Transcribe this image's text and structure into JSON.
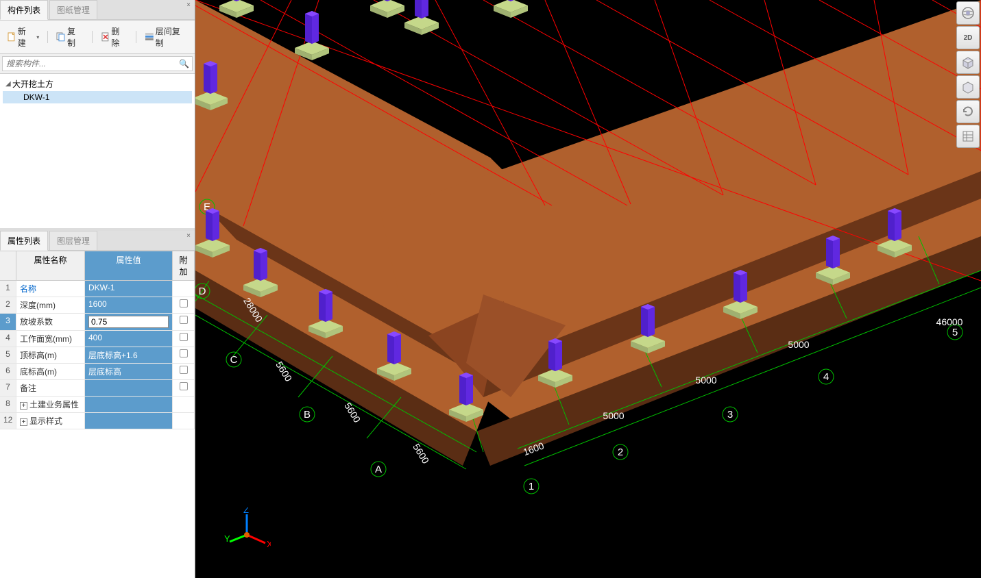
{
  "panel1": {
    "tabs": [
      "构件列表",
      "图纸管理"
    ],
    "toolbar": {
      "new": "新建",
      "copy": "复制",
      "delete": "删除",
      "layerCopy": "层间复制"
    },
    "searchPlaceholder": "搜索构件...",
    "tree": {
      "root": "大开挖土方",
      "child": "DKW-1"
    }
  },
  "panel2": {
    "tabs": [
      "属性列表",
      "图层管理"
    ],
    "headers": {
      "name": "属性名称",
      "value": "属性值",
      "extra": "附加"
    },
    "rows": [
      {
        "num": "1",
        "name": "名称",
        "value": "DKW-1",
        "link": true,
        "checkbox": false
      },
      {
        "num": "2",
        "name": "深度(mm)",
        "value": "1600",
        "checkbox": true
      },
      {
        "num": "3",
        "name": "放坡系数",
        "value": "0.75",
        "selected": true,
        "editing": true,
        "checkbox": true
      },
      {
        "num": "4",
        "name": "工作面宽(mm)",
        "value": "400",
        "checkbox": true
      },
      {
        "num": "5",
        "name": "顶标高(m)",
        "value": "层底标高+1.6",
        "checkbox": true
      },
      {
        "num": "6",
        "name": "底标高(m)",
        "value": "层底标高",
        "checkbox": true
      },
      {
        "num": "7",
        "name": "备注",
        "value": "",
        "checkbox": true
      },
      {
        "num": "8",
        "name": "土建业务属性",
        "value": "",
        "expandable": true,
        "checkbox": false
      },
      {
        "num": "12",
        "name": "显示样式",
        "value": "",
        "expandable": true,
        "checkbox": false
      }
    ]
  },
  "viewport": {
    "gridColor": "#ff0000",
    "axisColor": "#00ff00",
    "earthworkColor": "#a0522d",
    "earthworkColorDark": "#6b3518",
    "columnColor": "#7030ff",
    "baseColor": "#c5d88a",
    "axisLabelsX": [
      "1",
      "2",
      "3",
      "4",
      "5"
    ],
    "axisLabelsY": [
      "A",
      "B",
      "C",
      "D",
      "E"
    ],
    "dimensionsX": [
      "1600",
      "5000",
      "5000",
      "5000",
      "46000"
    ],
    "dimensionsY": [
      "5600",
      "5600",
      "5600",
      "28000"
    ],
    "gizmo": {
      "x": "X",
      "y": "Y",
      "z": "Z"
    }
  },
  "rightToolbar": {
    "btn2d": "2D"
  }
}
